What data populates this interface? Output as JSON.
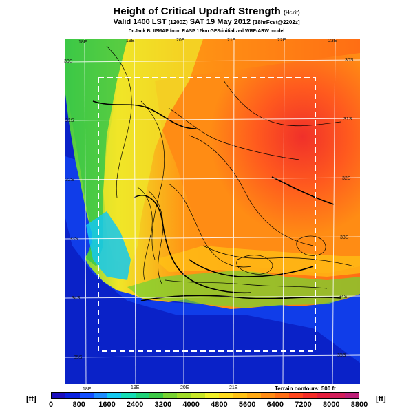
{
  "title": {
    "main": "Height of Critical Updraft Strength",
    "units": "(Hcrit)",
    "valid_line": "Valid 1400 LST",
    "valid_utc": "(1200Z)",
    "valid_date": "SAT 19 May 2012",
    "forecast": "[18hrFcst@2202z]",
    "credit": "Dr.Jack BLIPMAP from RASP 12km GFS-initialized WRF-ARW model"
  },
  "map": {
    "top_lon_labels": [
      "18E",
      "19E",
      "20E",
      "21E",
      "22E",
      "23E"
    ],
    "bottom_lon_labels": [
      "18E",
      "19E",
      "20E",
      "21E"
    ],
    "left_lat_labels": [
      "30S",
      "31S",
      "32S",
      "33S",
      "34S",
      "35S"
    ],
    "right_lat_labels": [
      "30S",
      "31S",
      "32S",
      "33S",
      "34S",
      "35S"
    ],
    "terrain_note": "Terrain contours: 500 ft",
    "colors": {
      "ocean": "#0a22c8",
      "grid": "#ffffff",
      "box": "#ffffff"
    }
  },
  "colorbar": {
    "unit_left": "[ft]",
    "unit_right": "[ft]",
    "ticks": [
      "0",
      "800",
      "1600",
      "2400",
      "3200",
      "4000",
      "4800",
      "5600",
      "6400",
      "7200",
      "8000",
      "8800"
    ],
    "colors": [
      "#1c0fbe",
      "#0a22e0",
      "#1450ff",
      "#1e8cff",
      "#14c8f0",
      "#14dcb4",
      "#1ed278",
      "#3cc846",
      "#78d232",
      "#a0dc28",
      "#c8e628",
      "#f0f028",
      "#ffdc1e",
      "#ffc314",
      "#ffaa14",
      "#ff8c14",
      "#ff6e14",
      "#ff461e",
      "#f52d28",
      "#e61e3c",
      "#d21e5a",
      "#be1e78"
    ]
  }
}
